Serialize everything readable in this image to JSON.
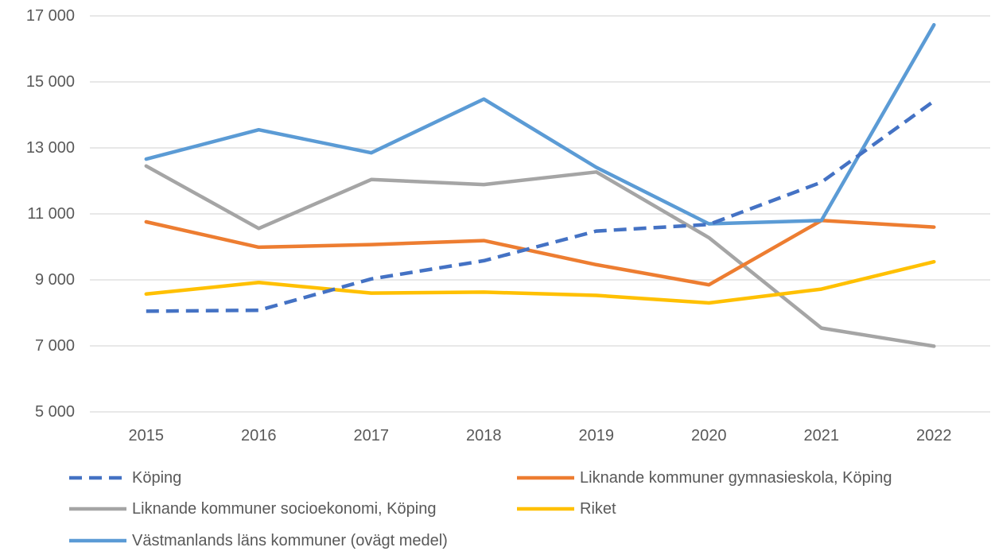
{
  "chart_data": {
    "type": "line",
    "title": "",
    "xlabel": "",
    "ylabel": "",
    "x": [
      "2015",
      "2016",
      "2017",
      "2018",
      "2019",
      "2020",
      "2021",
      "2022"
    ],
    "ylim": [
      5000,
      17000
    ],
    "yticks": [
      5000,
      7000,
      9000,
      11000,
      13000,
      15000,
      17000
    ],
    "ytick_labels": [
      "5 000",
      "7 000",
      "9 000",
      "11 000",
      "13 000",
      "15 000",
      "17 000"
    ],
    "grid": true,
    "legend_position": "bottom",
    "series": [
      {
        "name": "Köping",
        "color": "#4472c4",
        "dashed": true,
        "values": [
          8050,
          8080,
          9030,
          9580,
          10480,
          10680,
          11960,
          14420
        ]
      },
      {
        "name": "Liknande kommuner gymnasieskola, Köping",
        "color": "#ed7d31",
        "dashed": false,
        "values": [
          10760,
          9990,
          10070,
          10190,
          9460,
          8850,
          10800,
          10600
        ]
      },
      {
        "name": "Liknande kommuner socioekonomi, Köping",
        "color": "#a5a5a5",
        "dashed": false,
        "values": [
          12450,
          10560,
          12040,
          11890,
          12270,
          10280,
          7540,
          6990
        ]
      },
      {
        "name": "Riket",
        "color": "#ffc000",
        "dashed": false,
        "values": [
          8570,
          8920,
          8600,
          8630,
          8530,
          8300,
          8720,
          9550
        ]
      },
      {
        "name": "Västmanlands läns kommuner (ovägt medel)",
        "color": "#5b9bd5",
        "dashed": false,
        "values": [
          12660,
          13550,
          12850,
          14480,
          12410,
          10700,
          10800,
          16730
        ]
      }
    ]
  }
}
